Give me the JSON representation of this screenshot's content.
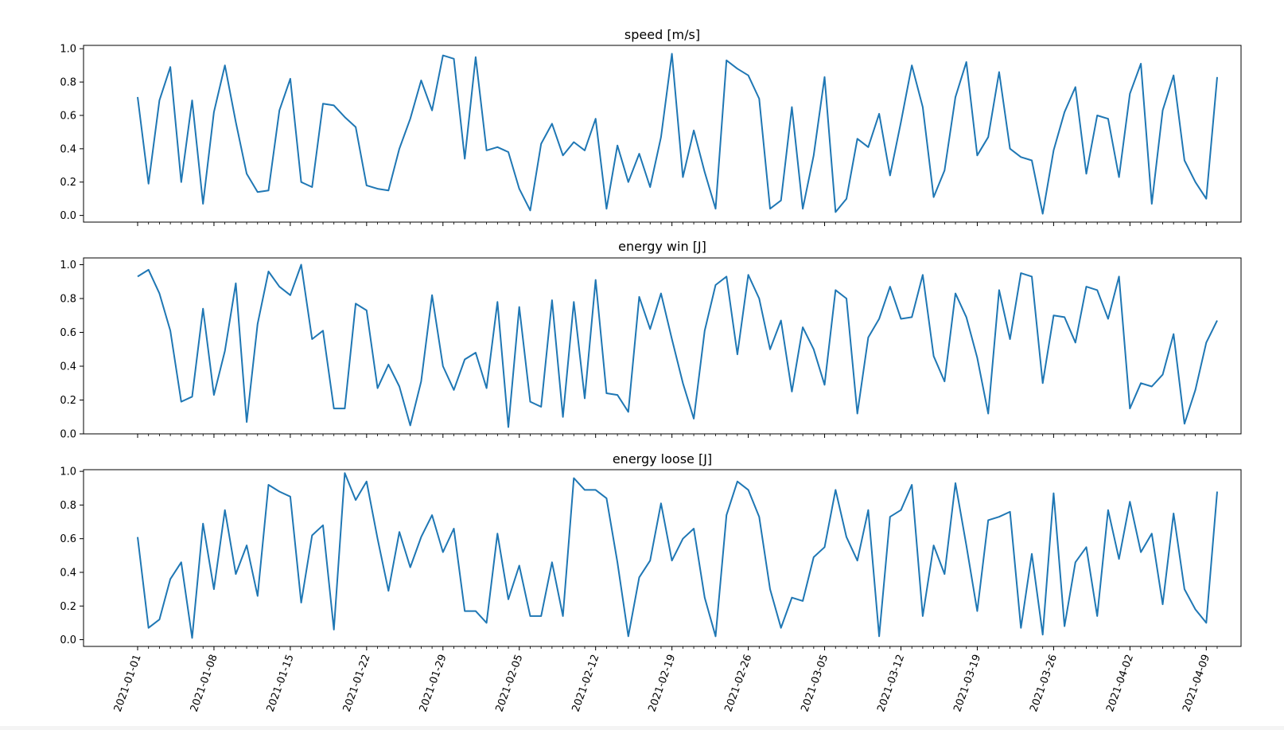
{
  "chart_data": [
    {
      "type": "line",
      "title": "speed [m/s]",
      "ylim": [
        -0.04,
        1.02
      ],
      "yticks": [
        "0.0",
        "0.2",
        "0.4",
        "0.6",
        "0.8",
        "1.0"
      ],
      "grid": false,
      "color": "#1f77b4",
      "x_start": "2021-01-01",
      "x_end": "2021-04-10",
      "values": [
        0.71,
        0.19,
        0.69,
        0.89,
        0.2,
        0.69,
        0.07,
        0.62,
        0.9,
        0.56,
        0.25,
        0.14,
        0.15,
        0.63,
        0.82,
        0.2,
        0.17,
        0.67,
        0.66,
        0.59,
        0.53,
        0.18,
        0.16,
        0.15,
        0.4,
        0.58,
        0.81,
        0.63,
        0.96,
        0.94,
        0.34,
        0.95,
        0.39,
        0.41,
        0.38,
        0.16,
        0.03,
        0.43,
        0.55,
        0.36,
        0.44,
        0.39,
        0.58,
        0.04,
        0.42,
        0.2,
        0.37,
        0.17,
        0.47,
        0.97,
        0.23,
        0.51,
        0.26,
        0.04,
        0.93,
        0.88,
        0.84,
        0.7,
        0.04,
        0.09,
        0.65,
        0.04,
        0.36,
        0.83,
        0.02,
        0.1,
        0.46,
        0.41,
        0.61,
        0.24,
        0.56,
        0.9,
        0.65,
        0.11,
        0.27,
        0.71,
        0.92,
        0.36,
        0.47,
        0.86,
        0.4,
        0.35,
        0.33,
        0.01,
        0.39,
        0.62,
        0.77,
        0.25,
        0.6,
        0.58,
        0.23,
        0.73,
        0.91,
        0.07,
        0.63,
        0.84,
        0.33,
        0.2,
        0.1,
        0.83
      ]
    },
    {
      "type": "line",
      "title": "energy win [J]",
      "ylim": [
        0.0,
        1.04
      ],
      "yticks": [
        "0.0",
        "0.2",
        "0.4",
        "0.6",
        "0.8",
        "1.0"
      ],
      "grid": false,
      "color": "#1f77b4",
      "x_start": "2021-01-01",
      "x_end": "2021-04-10",
      "values": [
        0.93,
        0.97,
        0.83,
        0.61,
        0.19,
        0.22,
        0.74,
        0.23,
        0.49,
        0.89,
        0.07,
        0.65,
        0.96,
        0.87,
        0.82,
        1.0,
        0.56,
        0.61,
        0.15,
        0.15,
        0.77,
        0.73,
        0.27,
        0.41,
        0.28,
        0.05,
        0.31,
        0.82,
        0.4,
        0.26,
        0.44,
        0.48,
        0.27,
        0.78,
        0.04,
        0.75,
        0.19,
        0.16,
        0.79,
        0.1,
        0.78,
        0.21,
        0.91,
        0.24,
        0.23,
        0.13,
        0.81,
        0.62,
        0.83,
        0.56,
        0.3,
        0.09,
        0.61,
        0.88,
        0.93,
        0.47,
        0.94,
        0.8,
        0.5,
        0.67,
        0.25,
        0.63,
        0.5,
        0.29,
        0.85,
        0.8,
        0.12,
        0.57,
        0.68,
        0.87,
        0.68,
        0.69,
        0.94,
        0.46,
        0.31,
        0.83,
        0.69,
        0.45,
        0.12,
        0.85,
        0.56,
        0.95,
        0.93,
        0.3,
        0.7,
        0.69,
        0.54,
        0.87,
        0.85,
        0.68,
        0.93,
        0.15,
        0.3,
        0.28,
        0.35,
        0.59,
        0.06,
        0.26,
        0.54,
        0.67
      ]
    },
    {
      "type": "line",
      "title": "energy loose [J]",
      "ylim": [
        -0.04,
        1.01
      ],
      "yticks": [
        "0.0",
        "0.2",
        "0.4",
        "0.6",
        "0.8",
        "1.0"
      ],
      "grid": false,
      "color": "#1f77b4",
      "x_start": "2021-01-01",
      "x_end": "2021-04-10",
      "xticks": [
        "2021-01-01",
        "2021-01-08",
        "2021-01-15",
        "2021-01-22",
        "2021-01-29",
        "2021-02-05",
        "2021-02-12",
        "2021-02-19",
        "2021-02-26",
        "2021-03-05",
        "2021-03-12",
        "2021-03-19",
        "2021-03-26",
        "2021-04-02",
        "2021-04-09"
      ],
      "values": [
        0.61,
        0.07,
        0.12,
        0.36,
        0.46,
        0.01,
        0.69,
        0.3,
        0.77,
        0.39,
        0.56,
        0.26,
        0.92,
        0.88,
        0.85,
        0.22,
        0.62,
        0.68,
        0.06,
        0.99,
        0.83,
        0.94,
        0.6,
        0.29,
        0.64,
        0.43,
        0.61,
        0.74,
        0.52,
        0.66,
        0.17,
        0.17,
        0.1,
        0.63,
        0.24,
        0.44,
        0.14,
        0.14,
        0.46,
        0.14,
        0.96,
        0.89,
        0.89,
        0.84,
        0.46,
        0.02,
        0.37,
        0.47,
        0.81,
        0.47,
        0.6,
        0.66,
        0.25,
        0.02,
        0.74,
        0.94,
        0.89,
        0.73,
        0.3,
        0.07,
        0.25,
        0.23,
        0.49,
        0.55,
        0.89,
        0.61,
        0.47,
        0.77,
        0.02,
        0.73,
        0.77,
        0.92,
        0.14,
        0.56,
        0.39,
        0.93,
        0.56,
        0.17,
        0.71,
        0.73,
        0.76,
        0.07,
        0.51,
        0.03,
        0.87,
        0.08,
        0.46,
        0.55,
        0.14,
        0.77,
        0.48,
        0.82,
        0.52,
        0.63,
        0.21,
        0.75,
        0.3,
        0.18,
        0.1,
        0.88
      ]
    }
  ]
}
